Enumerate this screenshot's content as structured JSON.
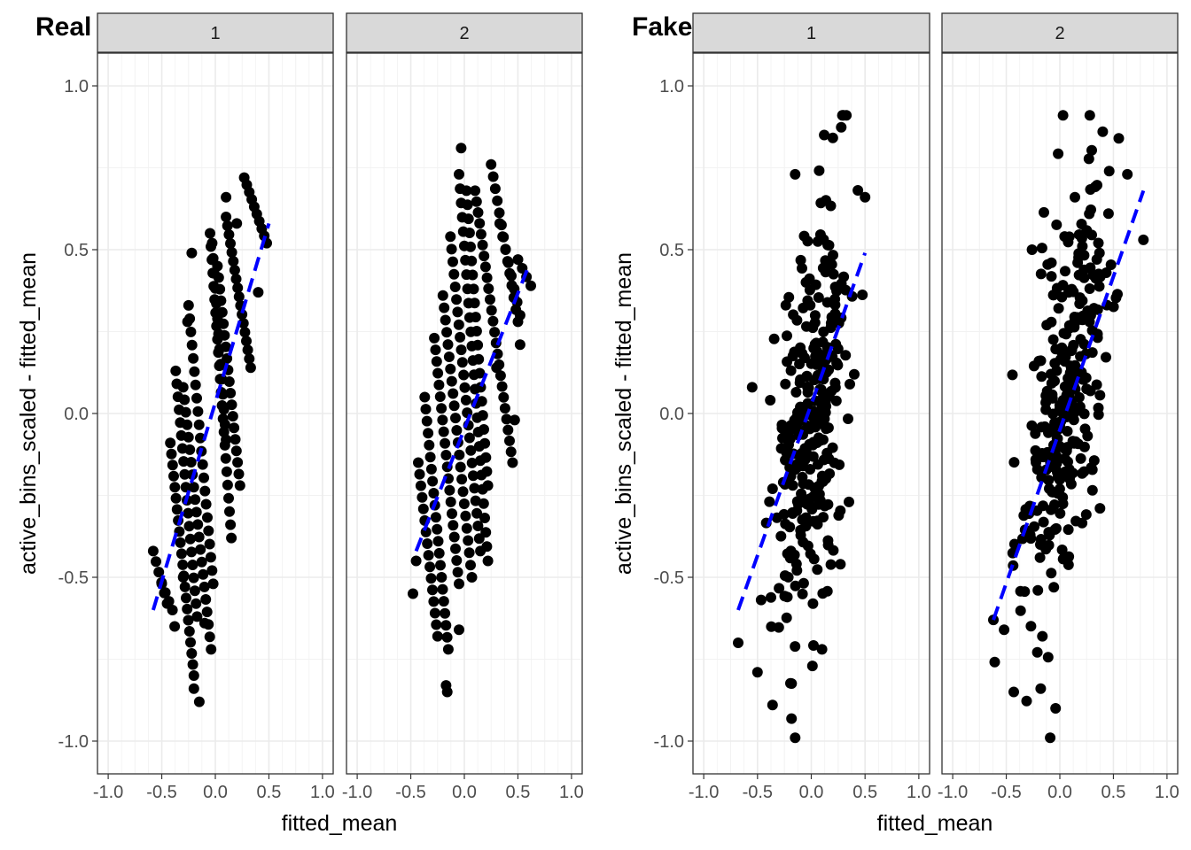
{
  "figure": {
    "left_title": "Real",
    "right_title": "Fake"
  },
  "chart_data": [
    {
      "type": "scatter",
      "title": "Real",
      "xlabel": "fitted_mean",
      "ylabel": "active_bins_scaled - fitted_mean",
      "xlim": [
        -1.1,
        1.1
      ],
      "ylim": [
        -1.1,
        1.1
      ],
      "xticks": [
        "-1.0",
        "-0.5",
        "0.0",
        "0.5",
        "1.0"
      ],
      "yticks": [
        "1.0",
        "0.5",
        "0.0",
        "-0.5",
        "-1.0"
      ],
      "grid": true,
      "colors": {
        "points": "#000000",
        "fit_line": "#0000ff",
        "strip": "#d9d9d9"
      },
      "facets": [
        {
          "label": "1",
          "bands": [
            {
              "x0": -0.58,
              "y0": -0.42,
              "x1": -0.45,
              "y1": -0.58,
              "n": 6
            },
            {
              "x0": -0.5,
              "y0": -0.52,
              "x1": -0.4,
              "y1": -0.6,
              "n": 4
            },
            {
              "x0": -0.42,
              "y0": -0.09,
              "x1": -0.2,
              "y1": -0.8,
              "n": 22
            },
            {
              "x0": -0.37,
              "y0": 0.13,
              "x1": -0.17,
              "y1": -0.62,
              "n": 20
            },
            {
              "x0": -0.3,
              "y0": 0.08,
              "x1": -0.04,
              "y1": -0.72,
              "n": 22
            },
            {
              "x0": -0.25,
              "y0": 0.33,
              "x1": -0.02,
              "y1": -0.52,
              "n": 22
            },
            {
              "x0": -0.05,
              "y0": 0.55,
              "x1": 0.15,
              "y1": -0.38,
              "n": 24
            },
            {
              "x0": -0.03,
              "y0": 0.52,
              "x1": 0.1,
              "y1": -0.08,
              "n": 14
            },
            {
              "x0": 0.02,
              "y0": 0.45,
              "x1": 0.23,
              "y1": -0.22,
              "n": 20
            },
            {
              "x0": 0.1,
              "y0": 0.6,
              "x1": 0.33,
              "y1": 0.14,
              "n": 18
            },
            {
              "x0": 0.27,
              "y0": 0.72,
              "x1": 0.48,
              "y1": 0.52,
              "n": 10
            }
          ],
          "extra_points": [
            {
              "x": -0.15,
              "y": -0.88
            },
            {
              "x": -0.2,
              "y": -0.84
            },
            {
              "x": -0.3,
              "y": -0.5
            },
            {
              "x": -0.22,
              "y": 0.49
            },
            {
              "x": -0.26,
              "y": 0.28
            },
            {
              "x": 0.1,
              "y": 0.66
            },
            {
              "x": 0.4,
              "y": 0.37
            },
            {
              "x": -0.1,
              "y": -0.64
            },
            {
              "x": -0.38,
              "y": -0.65
            },
            {
              "x": 0.2,
              "y": 0.58
            }
          ],
          "fit_line": {
            "x": [
              -0.58,
              0.5
            ],
            "y": [
              -0.6,
              0.58
            ]
          }
        },
        {
          "label": "2",
          "bands": [
            {
              "x0": -0.43,
              "y0": -0.15,
              "x1": -0.25,
              "y1": -0.68,
              "n": 16
            },
            {
              "x0": -0.37,
              "y0": 0.05,
              "x1": -0.15,
              "y1": -0.72,
              "n": 22
            },
            {
              "x0": -0.28,
              "y0": 0.23,
              "x1": -0.05,
              "y1": -0.52,
              "n": 22
            },
            {
              "x0": -0.2,
              "y0": 0.36,
              "x1": 0.07,
              "y1": -0.5,
              "n": 24
            },
            {
              "x0": -0.13,
              "y0": 0.54,
              "x1": 0.15,
              "y1": -0.42,
              "n": 26
            },
            {
              "x0": -0.05,
              "y0": 0.73,
              "x1": 0.22,
              "y1": -0.45,
              "n": 28
            },
            {
              "x0": 0.02,
              "y0": 0.68,
              "x1": 0.22,
              "y1": -0.22,
              "n": 22
            },
            {
              "x0": 0.1,
              "y0": 0.68,
              "x1": 0.45,
              "y1": -0.15,
              "n": 26
            },
            {
              "x0": 0.25,
              "y0": 0.76,
              "x1": 0.5,
              "y1": 0.28,
              "n": 14
            },
            {
              "x0": 0.33,
              "y0": 0.58,
              "x1": 0.52,
              "y1": 0.3,
              "n": 8
            },
            {
              "x0": 0.5,
              "y0": 0.47,
              "x1": 0.62,
              "y1": 0.39,
              "n": 4
            }
          ],
          "extra_points": [
            {
              "x": -0.03,
              "y": 0.81
            },
            {
              "x": -0.17,
              "y": -0.83
            },
            {
              "x": -0.16,
              "y": -0.85
            },
            {
              "x": -0.05,
              "y": -0.66
            },
            {
              "x": -0.48,
              "y": -0.55
            },
            {
              "x": -0.45,
              "y": -0.45
            },
            {
              "x": 0.52,
              "y": 0.21
            },
            {
              "x": 0.47,
              "y": -0.02
            },
            {
              "x": 0.3,
              "y": 0.14
            }
          ],
          "fit_line": {
            "x": [
              -0.45,
              0.6
            ],
            "y": [
              -0.42,
              0.45
            ]
          }
        }
      ]
    },
    {
      "type": "scatter",
      "title": "Fake",
      "xlabel": "fitted_mean",
      "ylabel": "active_bins_scaled - fitted_mean",
      "xlim": [
        -1.1,
        1.1
      ],
      "ylim": [
        -1.1,
        1.1
      ],
      "xticks": [
        "-1.0",
        "-0.5",
        "0.0",
        "0.5",
        "1.0"
      ],
      "yticks": [
        "1.0",
        "0.5",
        "0.0",
        "-0.5",
        "-1.0"
      ],
      "grid": true,
      "colors": {
        "points": "#000000",
        "fit_line": "#0000ff",
        "strip": "#d9d9d9"
      },
      "facets": [
        {
          "label": "1",
          "cloud": {
            "n": 300,
            "x_center": 0.0,
            "x_sd": 0.17,
            "x_min": -0.62,
            "x_max": 0.5,
            "slope": 1.0,
            "noise_sd": 0.29,
            "y_min": -0.99,
            "y_max": 0.91,
            "seed": 101
          },
          "extra_points": [
            {
              "x": -0.68,
              "y": -0.7
            },
            {
              "x": -0.55,
              "y": 0.08
            },
            {
              "x": -0.5,
              "y": -0.79
            },
            {
              "x": 0.3,
              "y": 0.91
            },
            {
              "x": 0.5,
              "y": 0.66
            },
            {
              "x": -0.15,
              "y": -0.99
            },
            {
              "x": 0.12,
              "y": 0.85
            },
            {
              "x": -0.15,
              "y": 0.73
            },
            {
              "x": 0.1,
              "y": -0.72
            },
            {
              "x": -0.36,
              "y": -0.89
            },
            {
              "x": 0.35,
              "y": -0.27
            }
          ],
          "fit_line": {
            "x": [
              -0.68,
              0.5
            ],
            "y": [
              -0.6,
              0.49
            ]
          }
        },
        {
          "label": "2",
          "cloud": {
            "n": 300,
            "x_center": 0.05,
            "x_sd": 0.2,
            "x_min": -0.62,
            "x_max": 0.78,
            "slope": 0.95,
            "noise_sd": 0.28,
            "y_min": -0.99,
            "y_max": 0.91,
            "seed": 202
          },
          "extra_points": [
            {
              "x": -0.62,
              "y": -0.63
            },
            {
              "x": 0.78,
              "y": 0.53
            },
            {
              "x": 0.03,
              "y": 0.91
            },
            {
              "x": -0.09,
              "y": -0.99
            },
            {
              "x": -0.04,
              "y": -0.9
            },
            {
              "x": -0.43,
              "y": -0.85
            },
            {
              "x": 0.55,
              "y": 0.84
            },
            {
              "x": 0.4,
              "y": 0.86
            },
            {
              "x": -0.52,
              "y": -0.66
            },
            {
              "x": 0.63,
              "y": 0.73
            },
            {
              "x": -0.26,
              "y": 0.5
            }
          ],
          "fit_line": {
            "x": [
              -0.62,
              0.78
            ],
            "y": [
              -0.63,
              0.68
            ]
          }
        }
      ]
    }
  ]
}
